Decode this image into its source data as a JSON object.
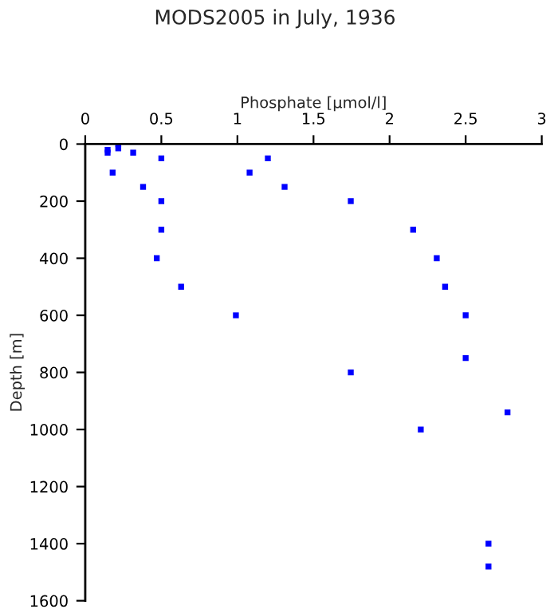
{
  "chart_data": {
    "type": "scatter",
    "title": "MODS2005 in July, 1936",
    "xlabel": "Phosphate [µmol/l]",
    "ylabel": "Depth [m]",
    "x": [
      0.147,
      0.147,
      0.217,
      0.217,
      0.315,
      0.5,
      0.18,
      0.38,
      0.5,
      0.5,
      0.47,
      0.63,
      0.99,
      1.2,
      1.08,
      1.31,
      1.745,
      2.155,
      2.31,
      2.365,
      2.5,
      1.745,
      2.5,
      2.775,
      2.205,
      2.65,
      2.65
    ],
    "series": [
      {
        "color": "#0000ff",
        "values": [
          20,
          30,
          0,
          15,
          30,
          50,
          100,
          150,
          200,
          300,
          400,
          500,
          600,
          50,
          100,
          150,
          200,
          300,
          400,
          500,
          600,
          800,
          750,
          940,
          1000,
          1400,
          1480
        ]
      }
    ],
    "xlim": [
      0,
      3
    ],
    "xticks": [
      0,
      0.5,
      1,
      1.5,
      2,
      2.5,
      3
    ],
    "ylim": [
      1600,
      0
    ],
    "yticks": [
      0,
      200,
      400,
      600,
      800,
      1000,
      1200,
      1400,
      1600
    ],
    "marker": "square",
    "grid": false,
    "legend": false
  }
}
